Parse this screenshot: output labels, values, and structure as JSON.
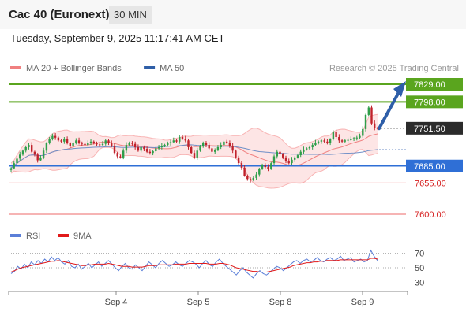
{
  "header": {
    "title": "Cac 40 (Euronext)",
    "timeframe": "30 MIN"
  },
  "datetime": "Tuesday, September 9, 2025 11:17:41 AM CET",
  "credit": "Research © 2025 Trading Central",
  "legend_main": [
    {
      "label": "MA 20 + Bollinger Bands",
      "color": "#f08080"
    },
    {
      "label": "MA 50",
      "color": "#2f5fa7"
    }
  ],
  "legend_rsi": [
    {
      "label": "RSI",
      "color": "#5b7fd8"
    },
    {
      "label": "9MA",
      "color": "#e11a1a"
    }
  ],
  "chart_data": {
    "type": "candlestick",
    "ylim": [
      7590,
      7835
    ],
    "x_ticks": [
      "Sep 4",
      "Sep 5",
      "Sep 8",
      "Sep 9"
    ],
    "price_levels": [
      {
        "value": 7829.0,
        "label": "7829.00",
        "style": "green-box"
      },
      {
        "value": 7798.0,
        "label": "7798.00",
        "style": "green-box"
      },
      {
        "value": 7751.5,
        "label": "7751.50",
        "style": "dark-box"
      },
      {
        "value": 7685.0,
        "label": "7685.00",
        "style": "blue-box"
      },
      {
        "value": 7655.0,
        "label": "7655.00",
        "style": "red-text"
      },
      {
        "value": 7600.0,
        "label": "7600.00",
        "style": "red-text"
      }
    ],
    "close_series": [
      7681,
      7690,
      7698,
      7705,
      7712,
      7718,
      7722,
      7710,
      7705,
      7695,
      7700,
      7712,
      7725,
      7733,
      7738,
      7735,
      7730,
      7728,
      7732,
      7725,
      7720,
      7725,
      7730,
      7726,
      7724,
      7722,
      7726,
      7728,
      7725,
      7723,
      7722,
      7724,
      7730,
      7726,
      7720,
      7708,
      7702,
      7700,
      7712,
      7722,
      7726,
      7724,
      7718,
      7712,
      7718,
      7715,
      7710,
      7708,
      7711,
      7716,
      7718,
      7720,
      7722,
      7725,
      7727,
      7730,
      7728,
      7736,
      7733,
      7730,
      7718,
      7708,
      7700,
      7712,
      7720,
      7725,
      7722,
      7716,
      7710,
      7713,
      7718,
      7722,
      7728,
      7726,
      7720,
      7712,
      7700,
      7690,
      7682,
      7668,
      7662,
      7660,
      7664,
      7670,
      7680,
      7686,
      7683,
      7680,
      7690,
      7702,
      7710,
      7706,
      7700,
      7694,
      7690,
      7696,
      7700,
      7704,
      7710,
      7714,
      7716,
      7718,
      7722,
      7726,
      7728,
      7730,
      7728,
      7726,
      7732,
      7745,
      7736,
      7730,
      7728,
      7730,
      7731,
      7732,
      7734,
      7735,
      7738,
      7750,
      7775,
      7788,
      7760,
      7752,
      7751
    ],
    "rsi": {
      "levels": [
        70,
        50,
        30
      ],
      "ylim": [
        20,
        80
      ],
      "rsi_series": [
        42,
        45,
        52,
        48,
        55,
        50,
        58,
        54,
        60,
        56,
        62,
        58,
        65,
        60,
        64,
        58,
        55,
        60,
        52,
        50,
        55,
        48,
        52,
        56,
        50,
        54,
        58,
        52,
        56,
        60,
        55,
        50,
        46,
        52,
        56,
        50,
        48,
        54,
        50,
        46,
        52,
        58,
        54,
        50,
        56,
        60,
        56,
        52,
        54,
        58,
        54,
        52,
        56,
        60,
        58,
        55,
        50,
        56,
        60,
        54,
        52,
        58,
        62,
        56,
        52,
        48,
        44,
        40,
        46,
        50,
        44,
        40,
        36,
        42,
        46,
        42,
        40,
        44,
        48,
        52,
        50,
        46,
        50,
        54,
        58,
        60,
        56,
        60,
        62,
        58,
        60,
        64,
        60,
        58,
        62,
        64,
        60,
        62,
        66,
        60,
        62,
        64,
        58,
        60,
        62,
        58,
        60,
        74,
        66,
        60
      ],
      "ma9_series": [
        44,
        46,
        48,
        50,
        51,
        52,
        53,
        54,
        55,
        56,
        57,
        58,
        59,
        59,
        60,
        59,
        58,
        57,
        56,
        55,
        54,
        53,
        53,
        54,
        54,
        55,
        55,
        55,
        55,
        56,
        55,
        54,
        53,
        52,
        52,
        52,
        51,
        51,
        51,
        51,
        52,
        53,
        53,
        53,
        54,
        54,
        54,
        54,
        54,
        55,
        55,
        55,
        55,
        56,
        56,
        56,
        56,
        56,
        56,
        55,
        55,
        55,
        56,
        56,
        55,
        54,
        52,
        50,
        49,
        48,
        47,
        46,
        45,
        45,
        44,
        44,
        44,
        45,
        46,
        47,
        48,
        49,
        50,
        51,
        53,
        54,
        55,
        56,
        57,
        57,
        58,
        58,
        59,
        59,
        60,
        60,
        60,
        60,
        61,
        61,
        61,
        61,
        61,
        61,
        61,
        61,
        61,
        63,
        63,
        62
      ]
    }
  }
}
